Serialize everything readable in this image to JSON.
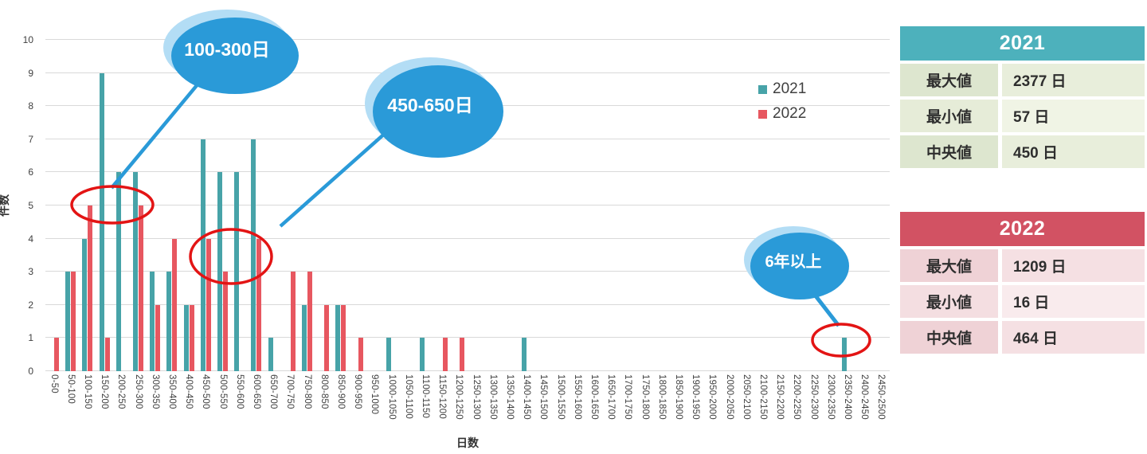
{
  "chart_data": {
    "type": "bar",
    "title": "",
    "xlabel": "日数",
    "ylabel": "件数",
    "ylim": [
      0,
      10
    ],
    "yticks": [
      0,
      1,
      2,
      3,
      4,
      5,
      6,
      7,
      8,
      9,
      10
    ],
    "grid": true,
    "legend_position": "top-right-inside",
    "categories": [
      "0-50",
      "50-100",
      "100-150",
      "150-200",
      "200-250",
      "250-300",
      "300-350",
      "350-400",
      "400-450",
      "450-500",
      "500-550",
      "550-600",
      "600-650",
      "650-700",
      "700-750",
      "750-800",
      "800-850",
      "850-900",
      "900-950",
      "950-1000",
      "1000-1050",
      "1050-1100",
      "1100-1150",
      "1150-1200",
      "1200-1250",
      "1250-1300",
      "1300-1350",
      "1350-1400",
      "1400-1450",
      "1450-1500",
      "1500-1550",
      "1550-1600",
      "1600-1650",
      "1650-1700",
      "1700-1750",
      "1750-1800",
      "1800-1850",
      "1850-1900",
      "1900-1950",
      "1950-2000",
      "2000-2050",
      "2050-2100",
      "2100-2150",
      "2150-2200",
      "2200-2250",
      "2250-2300",
      "2300-2350",
      "2350-2400",
      "2400-2450",
      "2450-2500"
    ],
    "series": [
      {
        "name": "2021",
        "color": "#47a3a8",
        "values": [
          0,
          3,
          4,
          9,
          6,
          6,
          3,
          3,
          2,
          7,
          6,
          6,
          7,
          1,
          0,
          2,
          0,
          2,
          0,
          0,
          1,
          0,
          1,
          0,
          0,
          0,
          0,
          0,
          1,
          0,
          0,
          0,
          0,
          0,
          0,
          0,
          0,
          0,
          0,
          0,
          0,
          0,
          0,
          0,
          0,
          0,
          0,
          1,
          0,
          0
        ]
      },
      {
        "name": "2022",
        "color": "#e75760",
        "values": [
          1,
          3,
          5,
          1,
          0,
          5,
          2,
          4,
          2,
          4,
          3,
          0,
          4,
          0,
          3,
          3,
          2,
          2,
          1,
          0,
          0,
          0,
          0,
          1,
          1,
          0,
          0,
          0,
          0,
          0,
          0,
          0,
          0,
          0,
          0,
          0,
          0,
          0,
          0,
          0,
          0,
          0,
          0,
          0,
          0,
          0,
          0,
          0,
          0,
          0
        ]
      }
    ]
  },
  "annotations": {
    "callouts": [
      {
        "text": "100-300日",
        "fill": "#2a9ad8",
        "halo": "#b3ddf5"
      },
      {
        "text": "450-650日",
        "fill": "#2a9ad8",
        "halo": "#b3ddf5"
      },
      {
        "text": "6年以上",
        "fill": "#2a9ad8",
        "halo": "#b3ddf5"
      }
    ],
    "highlight_circle_color": "#e31414",
    "callout_line_color": "#2a9ad8"
  },
  "stats_2021": {
    "title": "2021",
    "header_color": "#4db1bc",
    "rows": [
      {
        "label": "最大値",
        "value": "2377 日"
      },
      {
        "label": "最小値",
        "value": "57 日"
      },
      {
        "label": "中央値",
        "value": "450 日"
      }
    ]
  },
  "stats_2022": {
    "title": "2022",
    "header_color": "#d25263",
    "rows": [
      {
        "label": "最大値",
        "value": "1209 日"
      },
      {
        "label": "最小値",
        "value": "16 日"
      },
      {
        "label": "中央値",
        "value": "464 日"
      }
    ]
  }
}
